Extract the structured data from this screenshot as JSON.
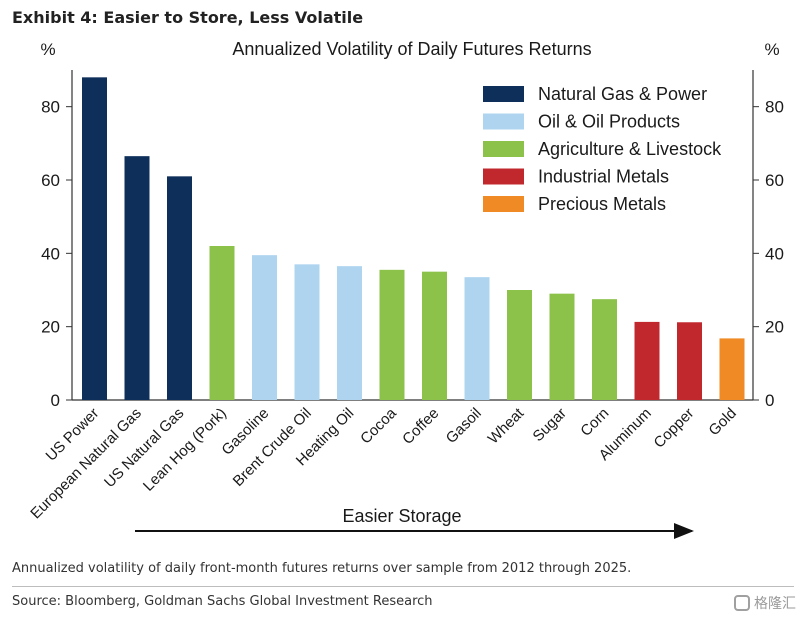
{
  "exhibit_title": "Exhibit 4: Easier to Store, Less Volatile",
  "note": "Annualized volatility of daily front-month futures returns over sample from 2012 through 2025.",
  "source": "Source: Bloomberg, Goldman Sachs Global Investment Research",
  "watermark": "格隆汇",
  "chart_data": {
    "type": "bar",
    "title": "Annualized Volatility of Daily Futures Returns",
    "ylabel_left": "%",
    "ylabel_right": "%",
    "ylim": [
      0,
      90
    ],
    "yticks": [
      0,
      20,
      40,
      60,
      80
    ],
    "grid": false,
    "legend_position": "top-right",
    "categories": [
      "US Power",
      "European Natural Gas",
      "US Natural Gas",
      "Lean Hog (Pork)",
      "Gasoline",
      "Brent Crude Oil",
      "Heating Oil",
      "Cocoa",
      "Coffee",
      "Gasoil",
      "Wheat",
      "Sugar",
      "Corn",
      "Aluminum",
      "Copper",
      "Gold"
    ],
    "values": [
      88,
      66.5,
      61,
      42,
      39.5,
      37,
      36.5,
      35.5,
      35,
      33.5,
      30,
      29,
      27.5,
      21.3,
      21.2,
      16.8
    ],
    "groups": [
      "Natural Gas & Power",
      "Natural Gas & Power",
      "Natural Gas & Power",
      "Agriculture & Livestock",
      "Oil & Oil Products",
      "Oil & Oil Products",
      "Oil & Oil Products",
      "Agriculture & Livestock",
      "Agriculture & Livestock",
      "Oil & Oil Products",
      "Agriculture & Livestock",
      "Agriculture & Livestock",
      "Agriculture & Livestock",
      "Industrial Metals",
      "Industrial Metals",
      "Precious Metals"
    ],
    "legend": [
      {
        "name": "Natural Gas & Power",
        "color": "#0d2f5a"
      },
      {
        "name": "Oil & Oil Products",
        "color": "#aed4f0"
      },
      {
        "name": "Agriculture & Livestock",
        "color": "#8cc24a"
      },
      {
        "name": "Industrial Metals",
        "color": "#c0282d"
      },
      {
        "name": "Precious Metals",
        "color": "#f08a24"
      }
    ],
    "annotation": "Easier Storage"
  }
}
